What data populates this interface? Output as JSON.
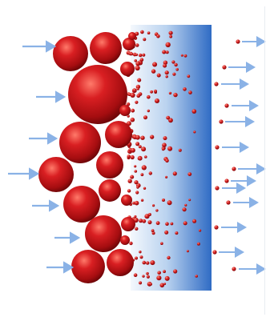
{
  "diagram": {
    "kind": "membrane-filtration",
    "labels": [],
    "colors": {
      "particle": "#c8161b",
      "particle_highlight": "#ff7a6a",
      "particle_shadow": "#6e0608",
      "membrane_light": "#f2f7fc",
      "membrane_dark": "#2f6bc4",
      "arrow": "#8ab2e6"
    },
    "icons": [
      "flow-arrow-icon",
      "large-particle",
      "small-particle",
      "membrane"
    ]
  }
}
